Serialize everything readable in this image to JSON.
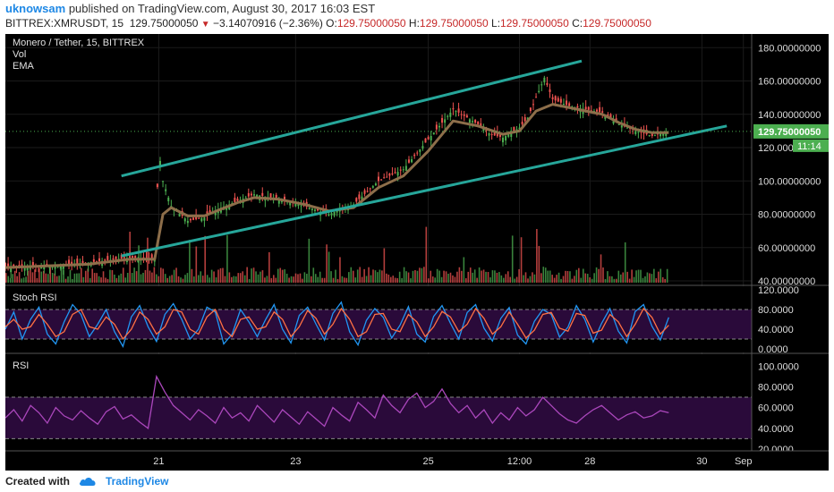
{
  "header": {
    "user": "uknowsam",
    "published": "published on TradingView.com, August 30, 2017 16:03 EST",
    "symbol": "BITTREX:XMRUSDT, 15",
    "last": "129.75000050",
    "change": "−3.14070916 (−2.36%)",
    "o_label": "O:",
    "o_value": "129.75000050",
    "h_label": "H:",
    "h_value": "129.75000050",
    "l_label": "L:",
    "l_value": "129.75000050",
    "c_label": "C:",
    "c_value": "129.75000050"
  },
  "main_pane": {
    "title": "Monero / Tether, 15, BITTREX",
    "vol_label": "Vol",
    "ema_label": "EMA",
    "price_badge": "129.75000050",
    "time_badge": "11:14"
  },
  "stoch_pane": {
    "title": "Stoch RSI"
  },
  "rsi_pane": {
    "title": "RSI"
  },
  "footer": {
    "created": "Created with",
    "brand": "TradingView"
  },
  "colors": {
    "background": "#000000",
    "channel": "#26a69a",
    "ema": "#8d6e4a",
    "candle_up": "#4caf50",
    "candle_down": "#ef5350",
    "stoch_k": "#2196f3",
    "stoch_d": "#ff7043",
    "rsi": "#ab47bc",
    "band_fill": "#2a0a3a",
    "price_badge": "#4caf50"
  },
  "chart_data": [
    {
      "type": "line",
      "title": "Monero / Tether, 15, BITTREX",
      "x_ticks": [
        "21",
        "23",
        "25",
        "12:00",
        "28",
        "30",
        "Sep"
      ],
      "y_ticks": [
        "40.00000000",
        "60.00000000",
        "80.00000000",
        "100.00000000",
        "120.00000000",
        "140.00000000",
        "160.00000000",
        "180.00000000"
      ],
      "ylim": [
        40,
        185
      ],
      "series": [
        {
          "x": [
            0,
            5,
            10,
            15,
            18,
            18.5,
            19,
            20,
            22,
            24,
            26,
            28,
            30,
            33,
            36,
            39,
            42,
            45,
            48,
            51,
            54,
            57,
            58.5,
            60,
            62,
            63,
            64,
            65,
            66,
            68,
            70,
            72,
            74,
            76,
            78,
            80
          ],
          "values": [
            48,
            49,
            51,
            54,
            53,
            118,
            100,
            85,
            76,
            78,
            84,
            88,
            92,
            89,
            85,
            80,
            86,
            100,
            107,
            125,
            143,
            134,
            128,
            126,
            132,
            138,
            150,
            162,
            149,
            145,
            143,
            141,
            134,
            130,
            127,
            129.75
          ]
        },
        {
          "x": [
            0,
            5,
            10,
            15,
            18,
            19,
            20,
            22,
            24,
            26,
            28,
            30,
            33,
            36,
            39,
            42,
            45,
            48,
            51,
            54,
            57,
            60,
            62,
            64,
            66,
            68,
            70,
            72,
            74,
            76,
            78,
            80
          ],
          "values": [
            48,
            49,
            50,
            53,
            53,
            80,
            84,
            79,
            79,
            83,
            87,
            90,
            89,
            86,
            82,
            84,
            96,
            103,
            118,
            136,
            133,
            128,
            130,
            142,
            146,
            144,
            142,
            140,
            135,
            131,
            129,
            129
          ]
        },
        {
          "x": [
            14,
            69.5
          ],
          "values": [
            103,
            172
          ]
        },
        {
          "x": [
            14,
            87
          ],
          "values": [
            55,
            133
          ]
        }
      ]
    },
    {
      "type": "line",
      "title": "Stoch RSI",
      "y_ticks": [
        "0.0000",
        "40.0000",
        "80.0000",
        "120.0000"
      ],
      "ylim": [
        0,
        120
      ],
      "bands": [
        20,
        80
      ],
      "series": [
        {
          "values": [
            40,
            75,
            20,
            60,
            85,
            30,
            10,
            55,
            90,
            70,
            25,
            50,
            80,
            35,
            5,
            65,
            88,
            45,
            15,
            70,
            92,
            60,
            20,
            40,
            85,
            75,
            10,
            30,
            80,
            55,
            25,
            60,
            90,
            40,
            12,
            68,
            85,
            50,
            18,
            72,
            95,
            35,
            8,
            58,
            82,
            64,
            22,
            48,
            86,
            30,
            14,
            66,
            88,
            52,
            20,
            74,
            90,
            42,
            16,
            62,
            84,
            28,
            10,
            56,
            80,
            70,
            24,
            44,
            88,
            60,
            14,
            52,
            82,
            36,
            12,
            76,
            90,
            46,
            18,
            64
          ]
        },
        {
          "values": [
            45,
            60,
            40,
            45,
            70,
            50,
            25,
            35,
            70,
            80,
            45,
            40,
            65,
            50,
            20,
            40,
            75,
            60,
            30,
            45,
            80,
            75,
            40,
            30,
            65,
            80,
            40,
            25,
            60,
            65,
            40,
            45,
            75,
            60,
            25,
            45,
            78,
            62,
            30,
            50,
            82,
            60,
            25,
            35,
            70,
            72,
            40,
            35,
            70,
            55,
            25,
            45,
            76,
            65,
            35,
            50,
            82,
            62,
            30,
            45,
            75,
            50,
            22,
            38,
            70,
            74,
            42,
            36,
            72,
            68,
            32,
            38,
            70,
            55,
            25,
            50,
            82,
            64,
            30,
            48
          ]
        }
      ]
    },
    {
      "type": "line",
      "title": "RSI",
      "y_ticks": [
        "20.0000",
        "40.0000",
        "60.0000",
        "80.0000",
        "100.0000"
      ],
      "ylim": [
        20,
        108
      ],
      "bands": [
        30,
        70
      ],
      "series": [
        {
          "values": [
            50,
            58,
            47,
            62,
            55,
            45,
            60,
            52,
            48,
            57,
            50,
            44,
            56,
            61,
            49,
            53,
            46,
            40,
            90,
            75,
            62,
            55,
            48,
            58,
            52,
            45,
            60,
            50,
            55,
            47,
            62,
            54,
            46,
            58,
            51,
            44,
            56,
            49,
            42,
            60,
            53,
            47,
            65,
            58,
            50,
            72,
            62,
            55,
            68,
            74,
            60,
            66,
            78,
            64,
            55,
            62,
            50,
            58,
            45,
            55,
            48,
            60,
            52,
            58,
            70,
            62,
            54,
            48,
            45,
            52,
            58,
            62,
            55,
            48,
            53,
            56,
            50,
            52,
            57,
            55
          ]
        }
      ]
    }
  ]
}
